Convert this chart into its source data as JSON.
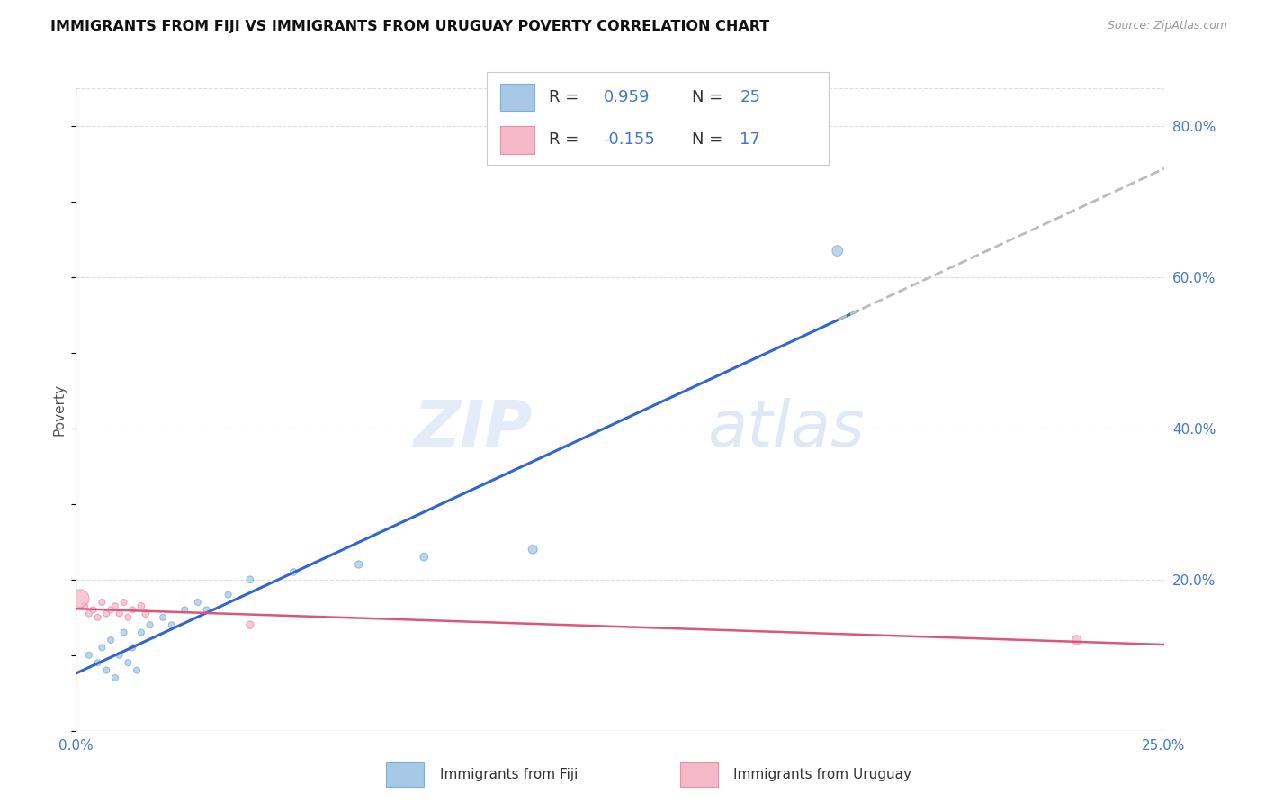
{
  "title": "IMMIGRANTS FROM FIJI VS IMMIGRANTS FROM URUGUAY POVERTY CORRELATION CHART",
  "source": "Source: ZipAtlas.com",
  "ylabel": "Poverty",
  "xlim": [
    0.0,
    0.25
  ],
  "ylim": [
    0.0,
    0.85
  ],
  "fiji_color": "#a8c8e8",
  "fiji_edge_color": "#7bafd4",
  "uruguay_color": "#f4b8c8",
  "uruguay_edge_color": "#e890a8",
  "fiji_line_color": "#3366cc",
  "uruguay_line_color": "#dd5577",
  "dashed_line_color": "#bbbbbb",
  "fiji_R": "0.959",
  "fiji_N": "25",
  "uruguay_R": "-0.155",
  "uruguay_N": "17",
  "watermark_zip": "ZIP",
  "watermark_atlas": "atlas",
  "legend_text_color": "#4477cc",
  "r_label_color": "#222222",
  "fiji_points": [
    [
      0.003,
      0.1
    ],
    [
      0.005,
      0.09
    ],
    [
      0.006,
      0.11
    ],
    [
      0.007,
      0.08
    ],
    [
      0.008,
      0.12
    ],
    [
      0.009,
      0.07
    ],
    [
      0.01,
      0.1
    ],
    [
      0.011,
      0.13
    ],
    [
      0.012,
      0.09
    ],
    [
      0.013,
      0.11
    ],
    [
      0.014,
      0.08
    ],
    [
      0.015,
      0.13
    ],
    [
      0.017,
      0.14
    ],
    [
      0.02,
      0.15
    ],
    [
      0.022,
      0.14
    ],
    [
      0.025,
      0.16
    ],
    [
      0.028,
      0.17
    ],
    [
      0.03,
      0.16
    ],
    [
      0.035,
      0.18
    ],
    [
      0.04,
      0.2
    ],
    [
      0.05,
      0.21
    ],
    [
      0.065,
      0.22
    ],
    [
      0.08,
      0.23
    ],
    [
      0.105,
      0.24
    ],
    [
      0.175,
      0.635
    ]
  ],
  "fiji_marker_sizes": [
    25,
    25,
    25,
    25,
    25,
    25,
    25,
    25,
    25,
    25,
    25,
    25,
    25,
    25,
    25,
    25,
    25,
    25,
    25,
    30,
    30,
    35,
    40,
    50,
    70
  ],
  "uruguay_points": [
    [
      0.002,
      0.165
    ],
    [
      0.003,
      0.155
    ],
    [
      0.004,
      0.16
    ],
    [
      0.005,
      0.15
    ],
    [
      0.006,
      0.17
    ],
    [
      0.007,
      0.155
    ],
    [
      0.008,
      0.16
    ],
    [
      0.009,
      0.165
    ],
    [
      0.01,
      0.155
    ],
    [
      0.011,
      0.17
    ],
    [
      0.012,
      0.15
    ],
    [
      0.013,
      0.16
    ],
    [
      0.015,
      0.165
    ],
    [
      0.016,
      0.155
    ],
    [
      0.04,
      0.14
    ],
    [
      0.23,
      0.12
    ],
    [
      0.001,
      0.175
    ]
  ],
  "uruguay_marker_sizes": [
    25,
    25,
    25,
    25,
    25,
    25,
    25,
    25,
    25,
    25,
    25,
    25,
    30,
    30,
    35,
    55,
    200
  ],
  "yticks": [
    0.0,
    0.2,
    0.4,
    0.6,
    0.8
  ],
  "ytick_labels": [
    "",
    "20.0%",
    "40.0%",
    "60.0%",
    "80.0%"
  ],
  "xtick_positions": [
    0.0,
    0.0625,
    0.125,
    0.1875,
    0.25
  ],
  "xtick_labels": [
    "0.0%",
    "",
    "",
    "",
    "25.0%"
  ],
  "grid_color": "#dddddd",
  "spine_color": "#cccccc",
  "background": "#ffffff"
}
